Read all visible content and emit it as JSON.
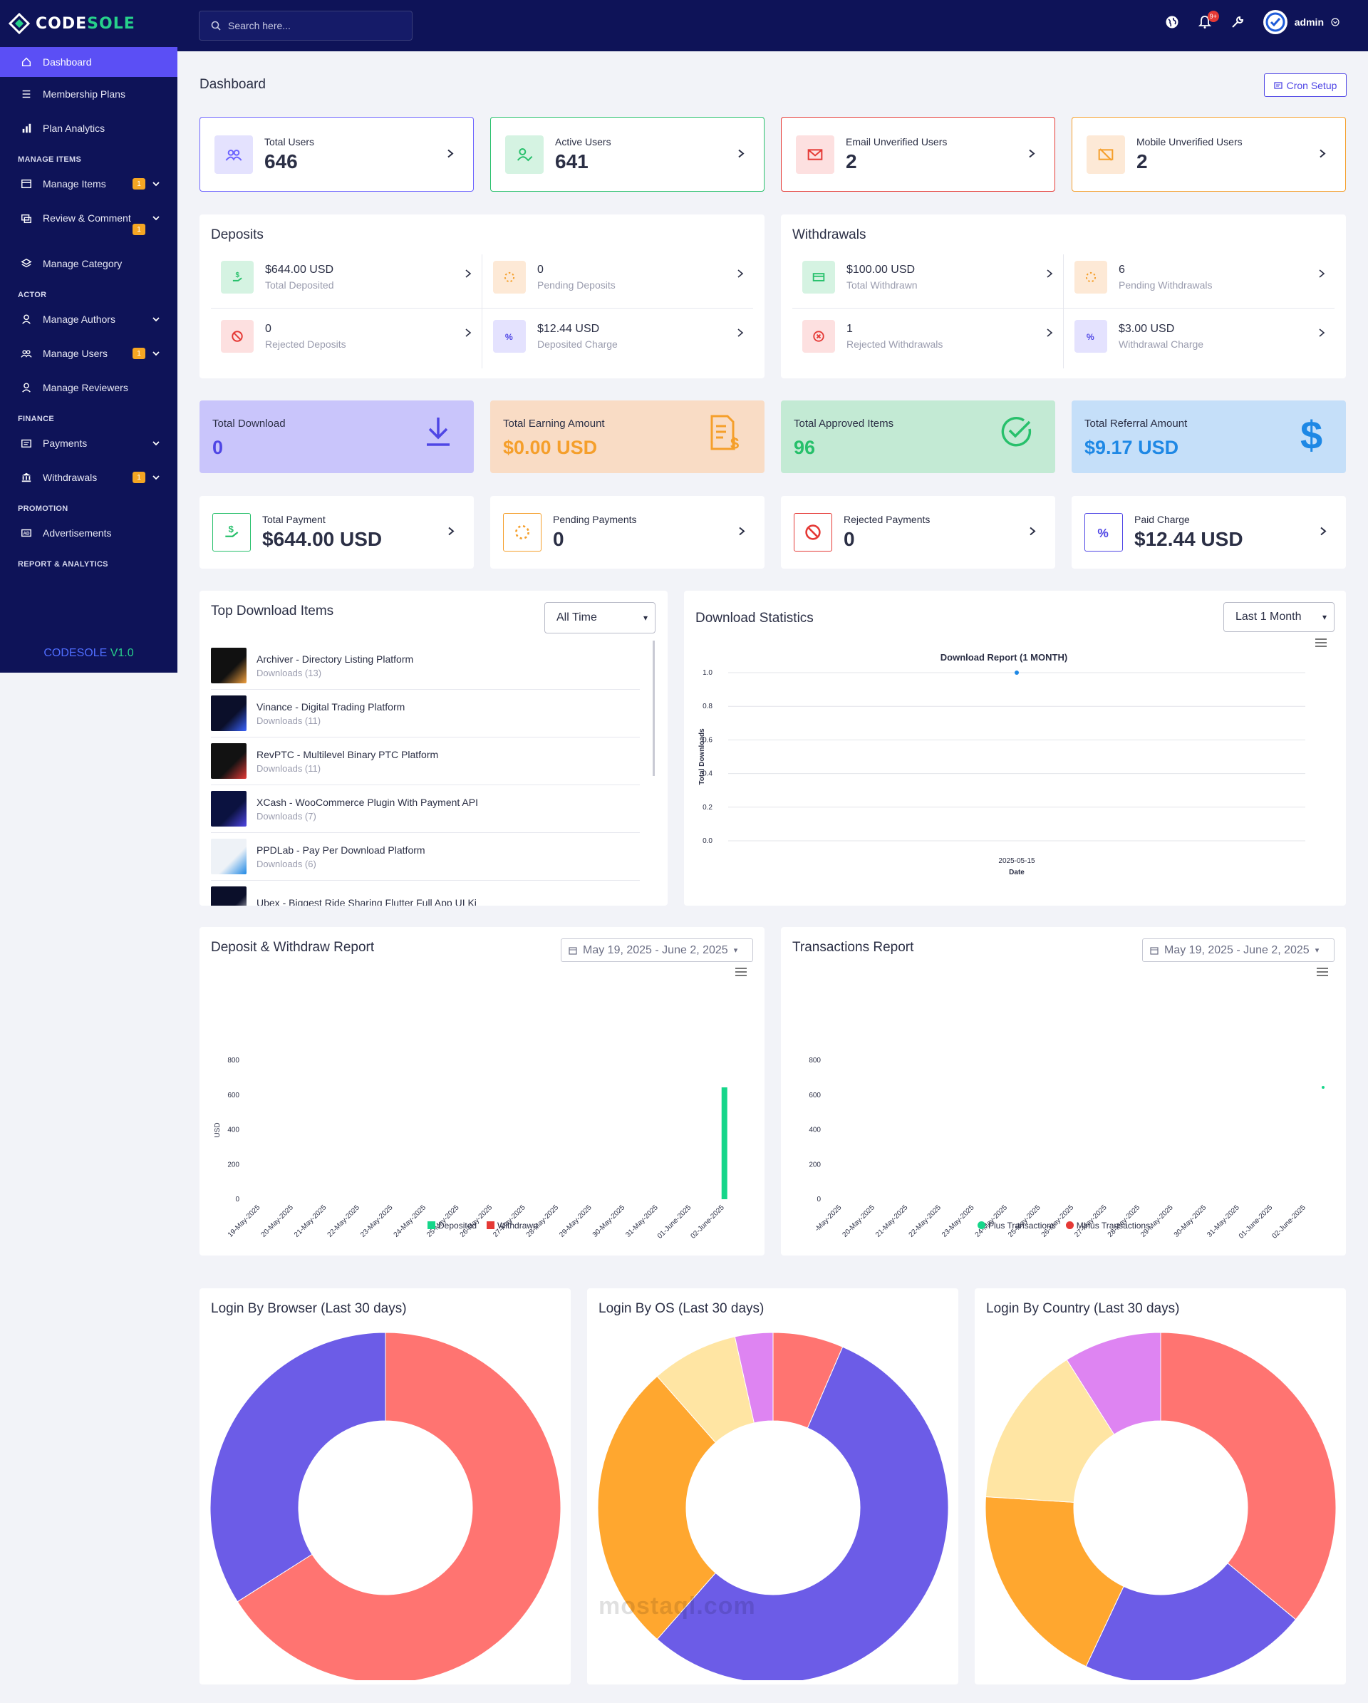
{
  "app": {
    "logo_prefix": "CODE",
    "logo_suffix": "SOLE",
    "version_name": "CODESOLE",
    "version_number": "V1.0"
  },
  "sidebar": {
    "items": [
      {
        "label": "Dashboard",
        "icon": "home-icon",
        "active": true
      },
      {
        "label": "Membership Plans",
        "icon": "list-icon"
      },
      {
        "label": "Plan Analytics",
        "icon": "bar-chart-icon"
      },
      {
        "section": "MANAGE ITEMS"
      },
      {
        "label": "Manage Items",
        "icon": "calendar-icon",
        "badge": "1",
        "chevron": true
      },
      {
        "label": "Review & Comment",
        "icon": "comment-icon",
        "badge": "1",
        "chevron": true
      },
      {
        "label": "Manage Category",
        "icon": "layers-icon"
      },
      {
        "section": "ACTOR"
      },
      {
        "label": "Manage Authors",
        "icon": "user-icon",
        "chevron": true
      },
      {
        "label": "Manage Users",
        "icon": "users-icon",
        "badge": "1",
        "chevron": true
      },
      {
        "label": "Manage Reviewers",
        "icon": "user-icon"
      },
      {
        "section": "FINANCE"
      },
      {
        "label": "Payments",
        "icon": "payment-icon",
        "chevron": true
      },
      {
        "label": "Withdrawals",
        "icon": "bank-icon",
        "badge": "1",
        "chevron": true
      },
      {
        "section": "PROMOTION"
      },
      {
        "label": "Advertisements",
        "icon": "ad-icon"
      },
      {
        "section": "REPORT & ANALYTICS"
      }
    ]
  },
  "topbar": {
    "search_placeholder": "Search here...",
    "notification_count": "9+",
    "username": "admin"
  },
  "page": {
    "title": "Dashboard",
    "cron_label": "Cron Setup"
  },
  "stats": [
    {
      "label": "Total Users",
      "value": "646",
      "color": "#6c63ff",
      "icon": "users-icon"
    },
    {
      "label": "Active Users",
      "value": "641",
      "color": "#27c06b",
      "icon": "user-check-icon"
    },
    {
      "label": "Email Unverified Users",
      "value": "2",
      "color": "#e53935",
      "icon": "envelope-icon"
    },
    {
      "label": "Mobile Unverified Users",
      "value": "2",
      "color": "#f59f2b",
      "icon": "mobile-off-icon"
    }
  ],
  "deposits": {
    "title": "Deposits",
    "items": [
      {
        "value": "$644.00 USD",
        "label": "Total Deposited"
      },
      {
        "value": "0",
        "label": "Pending Deposits"
      },
      {
        "value": "0",
        "label": "Rejected Deposits"
      },
      {
        "value": "$12.44 USD",
        "label": "Deposited Charge"
      }
    ]
  },
  "withdrawals": {
    "title": "Withdrawals",
    "items": [
      {
        "value": "$100.00 USD",
        "label": "Total Withdrawn"
      },
      {
        "value": "6",
        "label": "Pending Withdrawals"
      },
      {
        "value": "1",
        "label": "Rejected Withdrawals"
      },
      {
        "value": "$3.00 USD",
        "label": "Withdrawal Charge"
      }
    ]
  },
  "bigstats": [
    {
      "label": "Total Download",
      "value": "0",
      "bg": "#c9c5fb",
      "color": "#4f46e5",
      "icon": "download-icon"
    },
    {
      "label": "Total Earning Amount",
      "value": "$0.00 USD",
      "bg": "#f9dcc5",
      "color": "#f59f2b",
      "icon": "invoice-dollar-icon"
    },
    {
      "label": "Total Approved Items",
      "value": "96",
      "bg": "#c3ead4",
      "color": "#27c06b",
      "icon": "check-circle-icon"
    },
    {
      "label": "Total Referral Amount",
      "value": "$9.17 USD",
      "bg": "#c5dff9",
      "color": "#1e88e5",
      "icon": "dollar-icon"
    }
  ],
  "payments": [
    {
      "label": "Total Payment",
      "value": "$644.00 USD",
      "color": "#27c06b"
    },
    {
      "label": "Pending Payments",
      "value": "0",
      "color": "#f59f2b"
    },
    {
      "label": "Rejected Payments",
      "value": "0",
      "color": "#e53935"
    },
    {
      "label": "Paid Charge",
      "value": "$12.44 USD",
      "color": "#4f46e5"
    }
  ],
  "top_downloads": {
    "title": "Top Download Items",
    "filter": "All Time",
    "items": [
      {
        "name": "Archiver - Directory Listing Platform",
        "downloads": "Downloads (13)"
      },
      {
        "name": "Vinance - Digital Trading Platform",
        "downloads": "Downloads (11)"
      },
      {
        "name": "RevPTC - Multilevel Binary PTC Platform",
        "downloads": "Downloads (11)"
      },
      {
        "name": "XCash - WooCommerce Plugin With Payment API",
        "downloads": "Downloads (7)"
      },
      {
        "name": "PPDLab - Pay Per Download Platform",
        "downloads": "Downloads (6)"
      },
      {
        "name": "Ubex - Biggest Ride Sharing Flutter Full App UI Ki",
        "downloads": ""
      }
    ]
  },
  "download_stats": {
    "title": "Download Statistics",
    "filter": "Last 1 Month"
  },
  "deposit_withdraw": {
    "title": "Deposit & Withdraw Report",
    "range": "May 19, 2025 - June 2, 2025"
  },
  "transactions": {
    "title": "Transactions Report",
    "range": "May 19, 2025 - June 2, 2025"
  },
  "pies": [
    {
      "title": "Login By Browser (Last 30 days)"
    },
    {
      "title": "Login By OS (Last 30 days)"
    },
    {
      "title": "Login By Country (Last 30 days)"
    }
  ],
  "watermark": "mostaql.com",
  "chart_data": [
    {
      "type": "line",
      "title": "Download Report (1 MONTH)",
      "xlabel": "Date",
      "ylabel": "Total Downloads",
      "x": [
        "2025-05-15"
      ],
      "series": [
        {
          "values": [
            1
          ]
        }
      ],
      "ylim": [
        0,
        1
      ],
      "yticks": [
        "0.0",
        "0.2",
        "0.4",
        "0.6",
        "0.8",
        "1.0"
      ]
    },
    {
      "type": "bar",
      "ylabel": "USD",
      "categories": [
        "19-May-2025",
        "20-May-2025",
        "21-May-2025",
        "22-May-2025",
        "23-May-2025",
        "24-May-2025",
        "25-May-2025",
        "26-May-2025",
        "27-May-2025",
        "28-May-2025",
        "29-May-2025",
        "30-May-2025",
        "31-May-2025",
        "01-June-2025",
        "02-June-2025"
      ],
      "series": [
        {
          "name": "Deposited",
          "color": "#16d68a",
          "values": [
            0,
            0,
            0,
            0,
            0,
            0,
            0,
            0,
            0,
            0,
            0,
            0,
            0,
            0,
            644
          ]
        },
        {
          "name": "Withdrawn",
          "color": "#e53935",
          "values": [
            0,
            0,
            0,
            0,
            0,
            0,
            0,
            0,
            0,
            0,
            0,
            0,
            0,
            0,
            0
          ]
        }
      ],
      "ylim": [
        0,
        800
      ],
      "yticks": [
        "0",
        "200",
        "400",
        "600",
        "800"
      ]
    },
    {
      "type": "scatter",
      "categories": [
        "-May-2025",
        "20-May-2025",
        "21-May-2025",
        "22-May-2025",
        "23-May-2025",
        "24-May-2025",
        "25-May-2025",
        "26-May-2025",
        "27-May-2025",
        "28-May-2025",
        "29-May-2025",
        "30-May-2025",
        "31-May-2025",
        "01-June-2025",
        "02-June-2025"
      ],
      "series": [
        {
          "name": "Plus Transactions",
          "color": "#16d68a",
          "values": [
            null,
            null,
            null,
            null,
            null,
            null,
            null,
            null,
            null,
            null,
            null,
            null,
            null,
            null,
            644
          ]
        },
        {
          "name": "Minus Transactions",
          "color": "#e53935",
          "values": []
        }
      ],
      "ylim": [
        0,
        800
      ],
      "yticks": [
        "0",
        "200",
        "400",
        "600",
        "800"
      ]
    },
    {
      "type": "pie",
      "title": "Login By Browser (Last 30 days)",
      "slices": [
        {
          "value": 66,
          "color": "#ff7471"
        },
        {
          "value": 34,
          "color": "#6c5ce7"
        }
      ]
    },
    {
      "type": "pie",
      "title": "Login By OS (Last 30 days)",
      "slices": [
        {
          "value": 6.5,
          "color": "#ff7471"
        },
        {
          "value": 55,
          "color": "#6c5ce7"
        },
        {
          "value": 27,
          "color": "#ffa72f"
        },
        {
          "value": 8,
          "color": "#ffe5a3"
        },
        {
          "value": 3.5,
          "color": "#de84f2"
        }
      ]
    },
    {
      "type": "pie",
      "title": "Login By Country (Last 30 days)",
      "slices": [
        {
          "value": 36,
          "color": "#ff7471"
        },
        {
          "value": 21,
          "color": "#6c5ce7"
        },
        {
          "value": 19,
          "color": "#ffa72f"
        },
        {
          "value": 15,
          "color": "#ffe5a3"
        },
        {
          "value": 9,
          "color": "#de84f2"
        }
      ]
    }
  ]
}
